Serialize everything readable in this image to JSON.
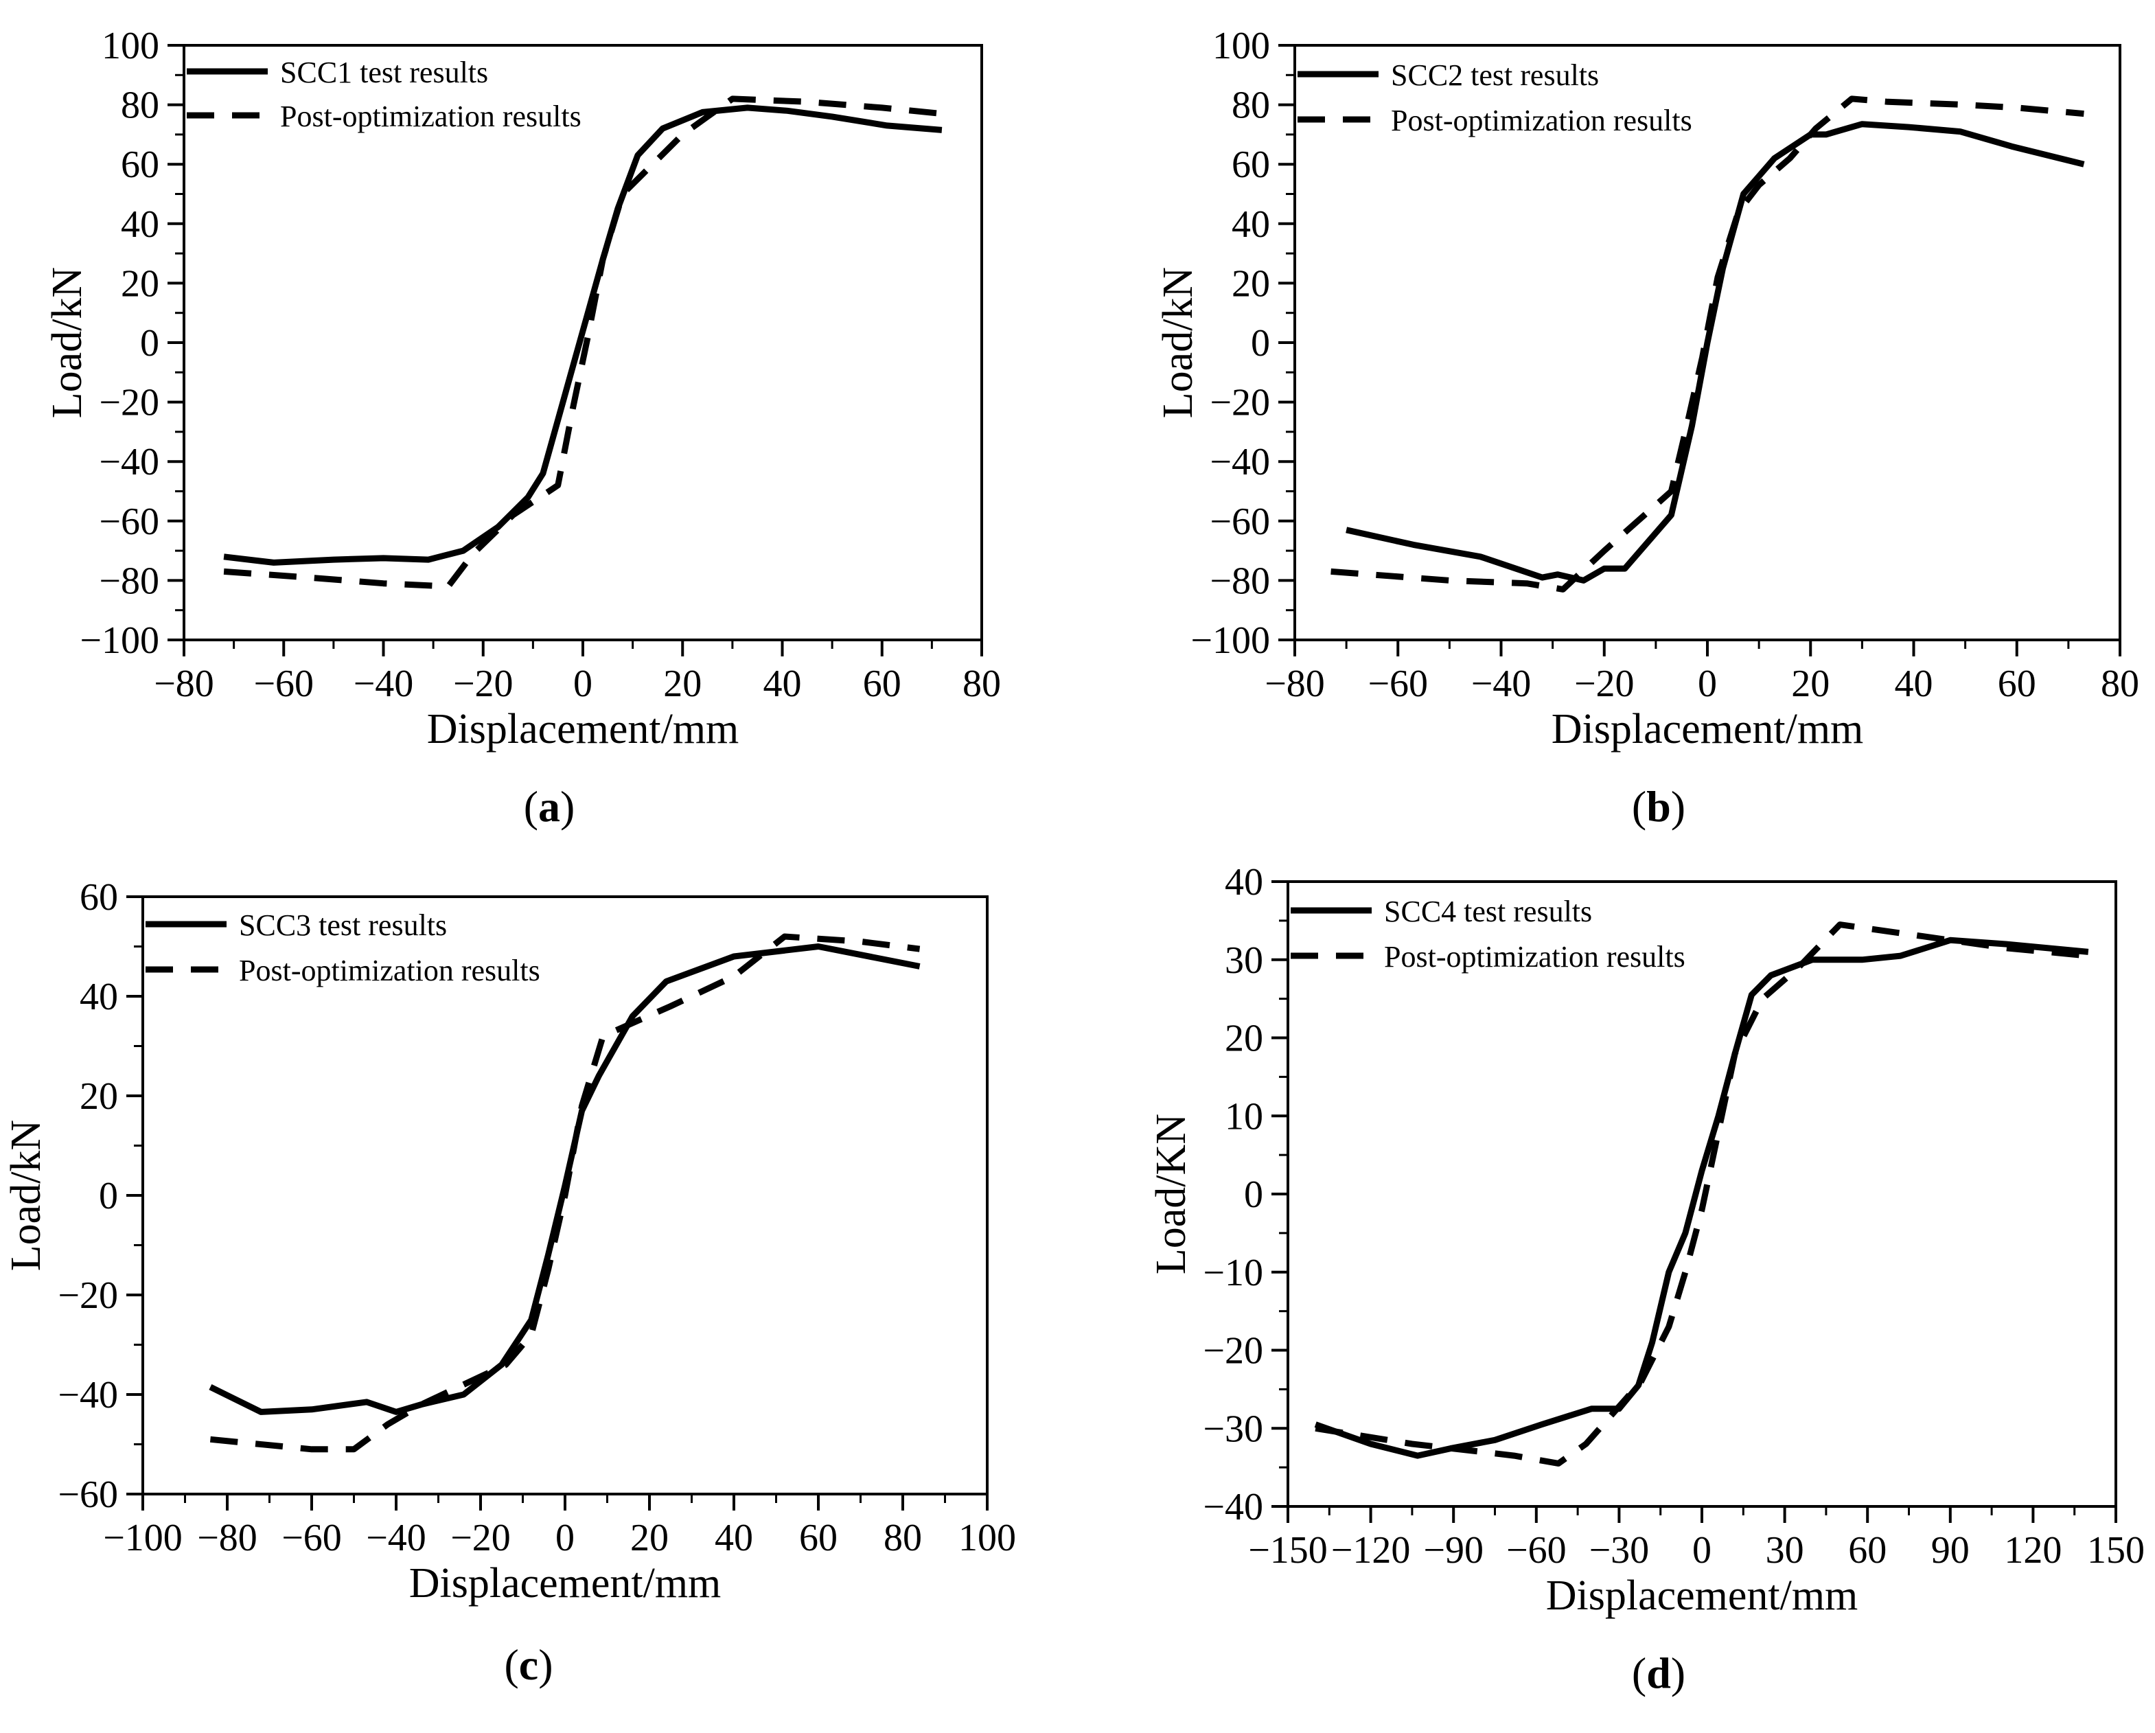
{
  "chart_data": [
    {
      "id": "a",
      "type": "line",
      "caption": "a",
      "xlabel": "Displacement/mm",
      "ylabel": "Load/kN",
      "xlim": [
        -80,
        80
      ],
      "ylim": [
        -100,
        100
      ],
      "xticks": [
        -80,
        -60,
        -40,
        -20,
        0,
        20,
        40,
        60,
        80
      ],
      "yticks": [
        -100,
        -80,
        -60,
        -40,
        -20,
        0,
        20,
        40,
        60,
        80,
        100
      ],
      "series": [
        {
          "name": "SCC1 test results",
          "style": "solid",
          "x": [
            -72,
            -62,
            -50,
            -40,
            -31,
            -24,
            -17,
            -11,
            -8,
            -5,
            -2,
            1,
            4,
            7,
            11,
            16,
            24,
            33,
            41,
            50,
            61,
            72
          ],
          "y": [
            -72,
            -74,
            -73,
            -72.5,
            -73,
            -70,
            -62,
            -52,
            -44,
            -26,
            -8,
            10,
            28,
            45,
            63,
            72,
            77.5,
            79,
            78,
            76,
            73,
            71.5
          ]
        },
        {
          "name": "Post-optimization results",
          "style": "dashed",
          "x": [
            -72,
            -55,
            -40,
            -27,
            -22,
            -14,
            -5,
            -2,
            1,
            4,
            8,
            14,
            20,
            25,
            30,
            45,
            60,
            72
          ],
          "y": [
            -77,
            -79,
            -81,
            -82,
            -71,
            -58,
            -48,
            -22,
            2,
            28,
            50,
            60,
            70,
            76,
            82,
            81,
            79,
            77
          ]
        }
      ]
    },
    {
      "id": "b",
      "type": "line",
      "caption": "b",
      "xlabel": "Displacement/mm",
      "ylabel": "Load/kN",
      "xlim": [
        -80,
        80
      ],
      "ylim": [
        -100,
        100
      ],
      "xticks": [
        -80,
        -60,
        -40,
        -20,
        0,
        20,
        40,
        60,
        80
      ],
      "yticks": [
        -100,
        -80,
        -60,
        -40,
        -20,
        0,
        20,
        40,
        60,
        80,
        100
      ],
      "series": [
        {
          "name": "SCC2 test results",
          "style": "solid",
          "x": [
            -70,
            -57,
            -44,
            -32,
            -29,
            -24,
            -20,
            -16,
            -7,
            -3,
            0,
            3,
            7,
            13,
            20,
            23,
            30,
            39,
            49,
            59,
            73
          ],
          "y": [
            -63,
            -68,
            -72,
            -79,
            -78,
            -80,
            -76,
            -76,
            -58,
            -28,
            0,
            25,
            50,
            62,
            70,
            70,
            73.5,
            72.5,
            71,
            66,
            60
          ]
        },
        {
          "name": "Post-optimization results",
          "style": "dashed",
          "x": [
            -73,
            -50,
            -35,
            -28,
            -20,
            -7,
            -4,
            -1,
            2,
            6,
            10,
            16,
            21,
            28,
            35,
            50,
            60,
            73
          ],
          "y": [
            -77,
            -80,
            -81,
            -83,
            -70,
            -50,
            -28,
            -5,
            22,
            44,
            53,
            62,
            72,
            82,
            81,
            80,
            79,
            77
          ]
        }
      ]
    },
    {
      "id": "c",
      "type": "line",
      "caption": "c",
      "xlabel": "Displacement/mm",
      "ylabel": "Load/kN",
      "xlim": [
        -100,
        100
      ],
      "ylim": [
        -60,
        60
      ],
      "xticks": [
        -100,
        -80,
        -60,
        -40,
        -20,
        0,
        20,
        40,
        60,
        80,
        100
      ],
      "yticks": [
        -60,
        -40,
        -20,
        0,
        20,
        40,
        60
      ],
      "series": [
        {
          "name": "SCC3 test results",
          "style": "solid",
          "x": [
            -84,
            -72,
            -60,
            -47,
            -40,
            -34,
            -24,
            -15,
            -8,
            -4,
            0,
            4,
            8,
            16,
            24,
            40,
            60,
            84
          ],
          "y": [
            -38.5,
            -43.5,
            -43,
            -41.5,
            -43.5,
            -42,
            -40,
            -34,
            -25,
            -12,
            2,
            17,
            24,
            36,
            43,
            48,
            50,
            46
          ]
        },
        {
          "name": "Post-optimization results",
          "style": "dashed",
          "x": [
            -84,
            -60,
            -50,
            -42,
            -34,
            -24,
            -14,
            -8,
            -4,
            0,
            4,
            9,
            17,
            25,
            40,
            52,
            70,
            84
          ],
          "y": [
            -49,
            -51,
            -51,
            -46,
            -42,
            -38,
            -34,
            -28,
            -15,
            0,
            18,
            32,
            35,
            38,
            44,
            52,
            51,
            49.5
          ]
        }
      ]
    },
    {
      "id": "d",
      "type": "line",
      "caption": "d",
      "xlabel": "Displacement/mm",
      "ylabel": "Load/KN",
      "xlim": [
        -150,
        150
      ],
      "ylim": [
        -40,
        40
      ],
      "xticks": [
        -150,
        -120,
        -90,
        -60,
        -30,
        0,
        30,
        60,
        90,
        120,
        150
      ],
      "yticks": [
        -40,
        -30,
        -20,
        -10,
        0,
        10,
        20,
        30,
        40
      ],
      "series": [
        {
          "name": "SCC4 test results",
          "style": "solid",
          "x": [
            -140,
            -120,
            -103,
            -90,
            -75,
            -58,
            -40,
            -30,
            -23,
            -18,
            -12,
            -6,
            0,
            6,
            12,
            18,
            25,
            40,
            58,
            72,
            90,
            110,
            140
          ],
          "y": [
            -29.5,
            -32,
            -33.5,
            -32.5,
            -31.5,
            -29.5,
            -27.5,
            -27.5,
            -24.5,
            -19,
            -10,
            -5,
            3,
            10,
            18,
            25.5,
            28,
            30,
            30,
            30.5,
            32.5,
            32,
            31
          ]
        },
        {
          "name": "Post-optimization results",
          "style": "dashed",
          "x": [
            -140,
            -105,
            -80,
            -68,
            -52,
            -42,
            -32,
            -22,
            -12,
            -6,
            0,
            6,
            12,
            22,
            35,
            50,
            80,
            110,
            140
          ],
          "y": [
            -30,
            -32,
            -33,
            -33.5,
            -34.5,
            -32,
            -28,
            -24,
            -17,
            -10,
            -2,
            8,
            18,
            25,
            29,
            34.5,
            33,
            31.5,
            30.5
          ]
        }
      ]
    }
  ]
}
